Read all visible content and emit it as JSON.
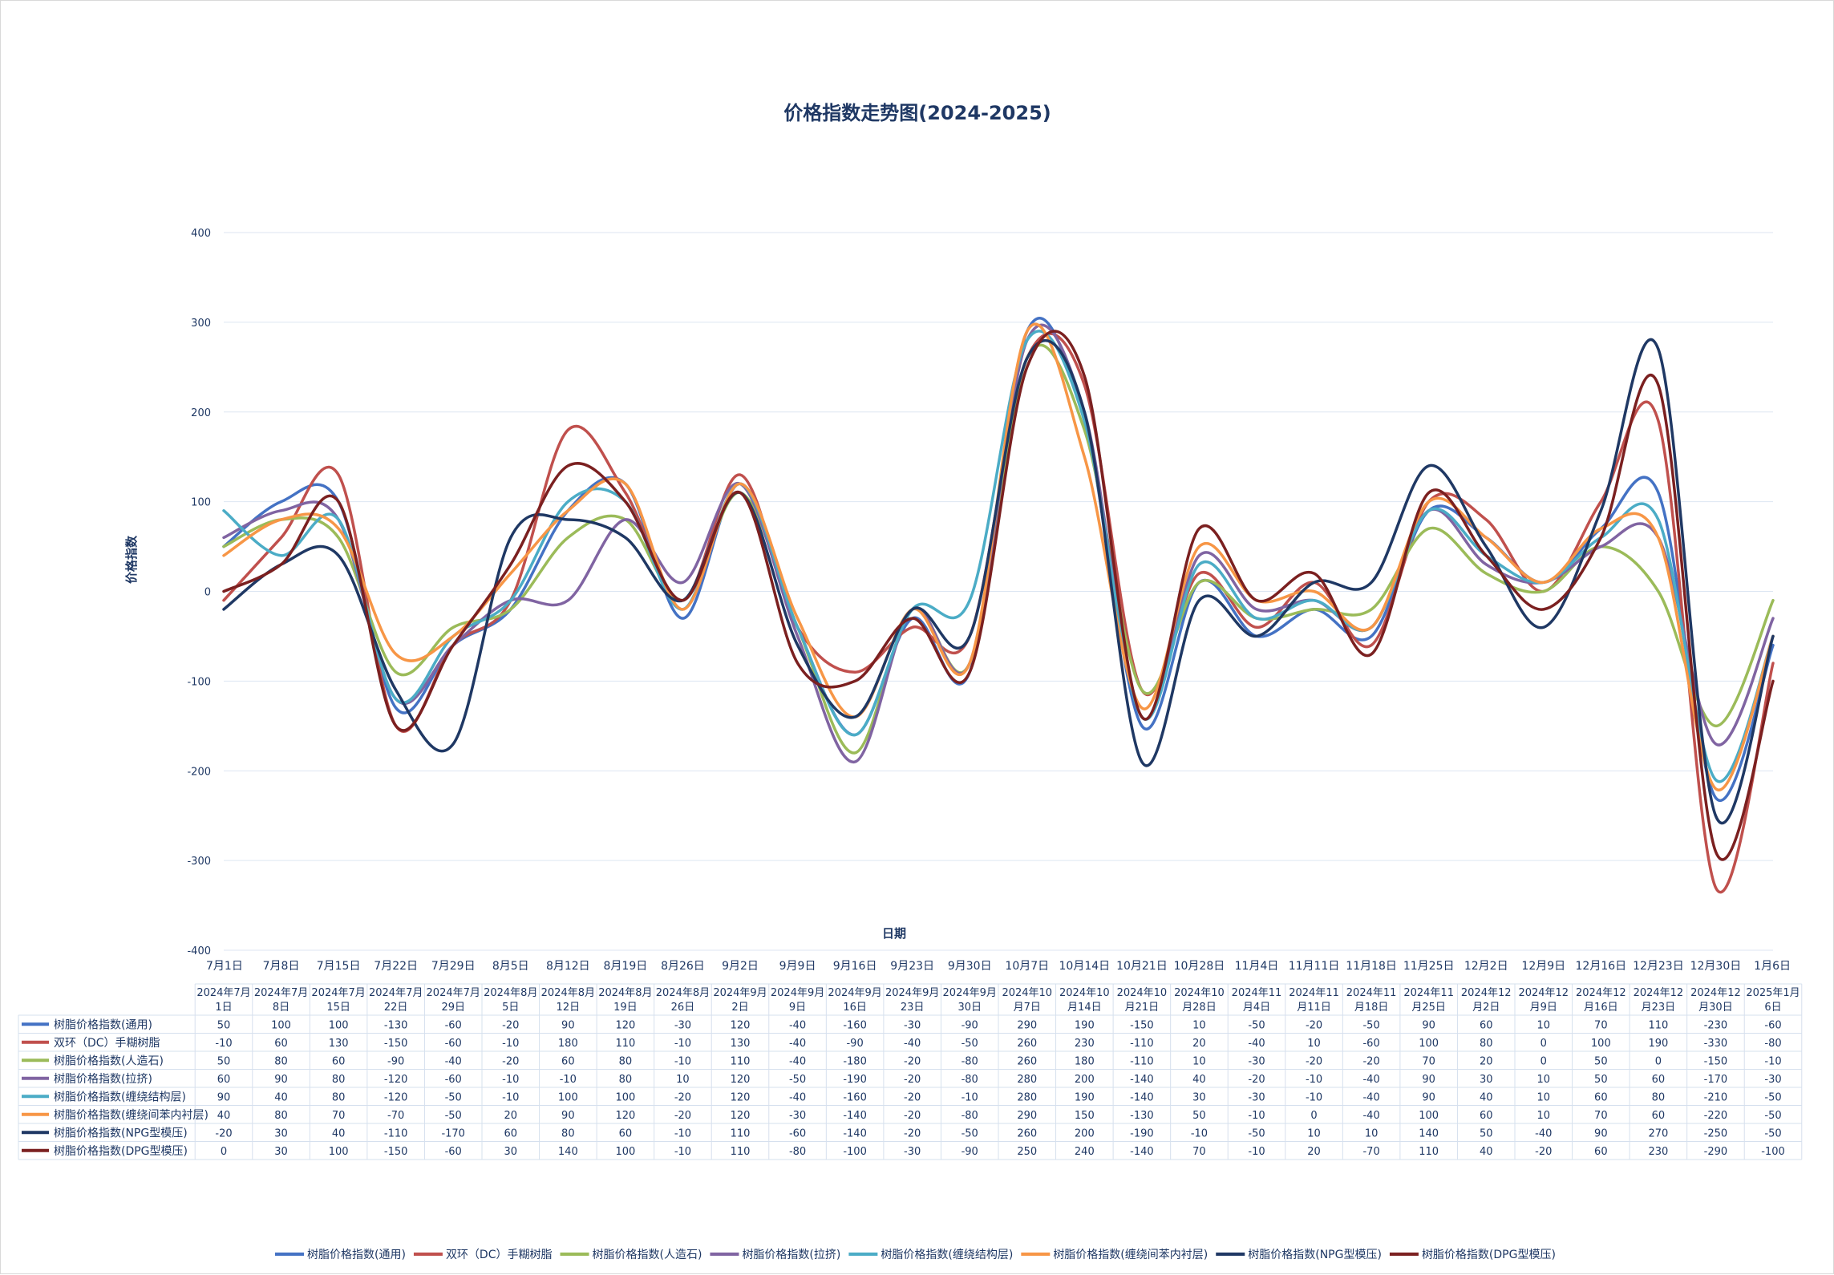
{
  "chart_data": {
    "type": "line",
    "title": "价格指数走势图(2024-2025)",
    "xlabel": "日期",
    "ylabel": "价格指数",
    "ylim": [
      -400,
      400
    ],
    "yticks": [
      400,
      300,
      200,
      100,
      0,
      -100,
      -200,
      -300,
      -400
    ],
    "grid": true,
    "legend_position": "bottom",
    "x": [
      "7月1日",
      "7月8日",
      "7月15日",
      "7月22日",
      "7月29日",
      "8月5日",
      "8月12日",
      "8月19日",
      "8月26日",
      "9月2日",
      "9月9日",
      "9月16日",
      "9月23日",
      "9月30日",
      "10月7日",
      "10月14日",
      "10月21日",
      "10月28日",
      "11月4日",
      "11月11日",
      "11月18日",
      "11月25日",
      "12月2日",
      "12月9日",
      "12月16日",
      "12月23日",
      "12月30日",
      "1月6日"
    ],
    "table_headers": [
      [
        "2024年7月",
        "1日"
      ],
      [
        "2024年7月",
        "8日"
      ],
      [
        "2024年7月",
        "15日"
      ],
      [
        "2024年7月",
        "22日"
      ],
      [
        "2024年7月",
        "29日"
      ],
      [
        "2024年8月",
        "5日"
      ],
      [
        "2024年8月",
        "12日"
      ],
      [
        "2024年8月",
        "19日"
      ],
      [
        "2024年8月",
        "26日"
      ],
      [
        "2024年9月",
        "2日"
      ],
      [
        "2024年9月",
        "9日"
      ],
      [
        "2024年9月",
        "16日"
      ],
      [
        "2024年9月",
        "23日"
      ],
      [
        "2024年9月",
        "30日"
      ],
      [
        "2024年10",
        "月7日"
      ],
      [
        "2024年10",
        "月14日"
      ],
      [
        "2024年10",
        "月21日"
      ],
      [
        "2024年10",
        "月28日"
      ],
      [
        "2024年11",
        "月4日"
      ],
      [
        "2024年11",
        "月11日"
      ],
      [
        "2024年11",
        "月18日"
      ],
      [
        "2024年11",
        "月25日"
      ],
      [
        "2024年12",
        "月2日"
      ],
      [
        "2024年12",
        "月9日"
      ],
      [
        "2024年12",
        "月16日"
      ],
      [
        "2024年12",
        "月23日"
      ],
      [
        "2024年12",
        "月30日"
      ],
      [
        "2025年1月",
        "6日"
      ]
    ],
    "series": [
      {
        "name": "树脂价格指数(通用)",
        "color": "#4472c4",
        "values": [
          50,
          100,
          100,
          -130,
          -60,
          -20,
          90,
          120,
          -30,
          120,
          -40,
          -160,
          -30,
          -90,
          290,
          190,
          -150,
          10,
          -50,
          -20,
          -50,
          90,
          60,
          10,
          70,
          110,
          -230,
          -60
        ]
      },
      {
        "name": "双环（DC）手糊树脂",
        "color": "#c0504d",
        "values": [
          -10,
          60,
          130,
          -150,
          -60,
          -10,
          180,
          110,
          -10,
          130,
          -40,
          -90,
          -40,
          -50,
          260,
          230,
          -110,
          20,
          -40,
          10,
          -60,
          100,
          80,
          0,
          100,
          190,
          -330,
          -80
        ]
      },
      {
        "name": "树脂价格指数(人造石)",
        "color": "#9bbb59",
        "values": [
          50,
          80,
          60,
          -90,
          -40,
          -20,
          60,
          80,
          -10,
          110,
          -40,
          -180,
          -20,
          -80,
          260,
          180,
          -110,
          10,
          -30,
          -20,
          -20,
          70,
          20,
          0,
          50,
          0,
          -150,
          -10
        ]
      },
      {
        "name": "树脂价格指数(拉挤)",
        "color": "#8064a2",
        "values": [
          60,
          90,
          80,
          -120,
          -60,
          -10,
          -10,
          80,
          10,
          120,
          -50,
          -190,
          -20,
          -80,
          280,
          200,
          -140,
          40,
          -20,
          -10,
          -40,
          90,
          30,
          10,
          50,
          60,
          -170,
          -30
        ]
      },
      {
        "name": "树脂价格指数(缠绕结构层)",
        "color": "#4bacc6",
        "values": [
          90,
          40,
          80,
          -120,
          -50,
          -10,
          100,
          100,
          -20,
          120,
          -40,
          -160,
          -20,
          -10,
          280,
          190,
          -140,
          30,
          -30,
          -10,
          -40,
          90,
          40,
          10,
          60,
          80,
          -210,
          -50
        ]
      },
      {
        "name": "树脂价格指数(缠绕间苯内衬层)",
        "color": "#f79646",
        "values": [
          40,
          80,
          70,
          -70,
          -50,
          20,
          90,
          120,
          -20,
          120,
          -30,
          -140,
          -20,
          -80,
          290,
          150,
          -130,
          50,
          -10,
          0,
          -40,
          100,
          60,
          10,
          70,
          60,
          -220,
          -50
        ]
      },
      {
        "name": "树脂价格指数(NPG型模压)",
        "color": "#1f3864",
        "values": [
          -20,
          30,
          40,
          -110,
          -170,
          60,
          80,
          60,
          -10,
          110,
          -60,
          -140,
          -20,
          -50,
          260,
          200,
          -190,
          -10,
          -50,
          10,
          10,
          140,
          50,
          -40,
          90,
          270,
          -250,
          -50
        ]
      },
      {
        "name": "树脂价格指数(DPG型模压)",
        "color": "#7b2020",
        "values": [
          0,
          30,
          100,
          -150,
          -60,
          30,
          140,
          100,
          -10,
          110,
          -80,
          -100,
          -30,
          -90,
          250,
          240,
          -140,
          70,
          -10,
          20,
          -70,
          110,
          40,
          -20,
          60,
          230,
          -290,
          -100
        ]
      }
    ]
  }
}
